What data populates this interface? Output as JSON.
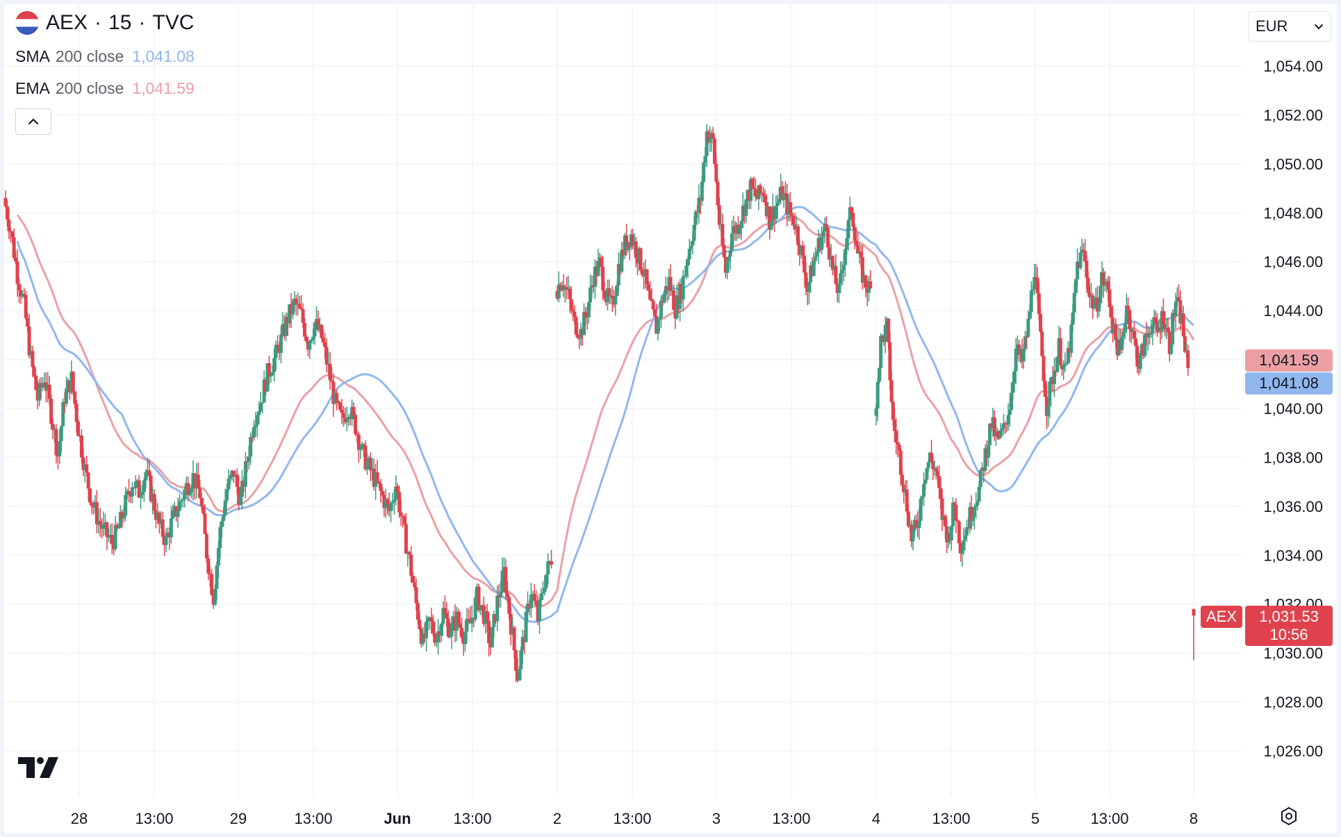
{
  "header": {
    "symbol": "AEX",
    "interval": "15",
    "source": "TVC",
    "separator": "·",
    "flag_icon": "netherlands-flag-icon"
  },
  "indicators": {
    "sma": {
      "name": "SMA",
      "params": "200 close",
      "value": "1,041.08",
      "color": "#90b7ee"
    },
    "ema": {
      "name": "EMA",
      "params": "200 close",
      "value": "1,041.59",
      "color": "#eca0a4"
    }
  },
  "currency": {
    "value": "EUR",
    "icon": "chevron-down-icon"
  },
  "price_labels": {
    "ema": "1,041.59",
    "sma": "1,041.08",
    "last_price": "1,031.53",
    "countdown": "10:56",
    "symbol_tag": "AEX"
  },
  "colors": {
    "up": "#3d9a80",
    "down": "#e0424d",
    "grid": "#f0f3fa"
  },
  "chart_data": {
    "type": "candlestick",
    "ylim": [
      1025,
      1055
    ],
    "y_ticks": [
      "1,026.00",
      "1,028.00",
      "1,030.00",
      "1,032.00",
      "1,034.00",
      "1,036.00",
      "1,038.00",
      "1,040.00",
      "1,042.00",
      "1,044.00",
      "1,046.00",
      "1,048.00",
      "1,050.00",
      "1,052.00",
      "1,054.00"
    ],
    "y_tick_values": [
      1026,
      1028,
      1030,
      1032,
      1034,
      1036,
      1038,
      1040,
      1042,
      1044,
      1046,
      1048,
      1050,
      1052,
      1054
    ],
    "x_ticks": [
      {
        "label": "28",
        "bold": false
      },
      {
        "label": "13:00",
        "bold": false
      },
      {
        "label": "29",
        "bold": false
      },
      {
        "label": "13:00",
        "bold": false
      },
      {
        "label": "Jun",
        "bold": true
      },
      {
        "label": "13:00",
        "bold": false
      },
      {
        "label": "2",
        "bold": false
      },
      {
        "label": "13:00",
        "bold": false
      },
      {
        "label": "3",
        "bold": false
      },
      {
        "label": "13:00",
        "bold": false
      },
      {
        "label": "4",
        "bold": false
      },
      {
        "label": "13:00",
        "bold": false
      },
      {
        "label": "5",
        "bold": false
      },
      {
        "label": "13:00",
        "bold": false
      },
      {
        "label": "8",
        "bold": false
      }
    ],
    "sessions": [
      {
        "close_path": [
          1048.6,
          1047.3,
          1045.5,
          1044.2,
          1042.0,
          1040.4,
          1041.3,
          1039.8,
          1038.1,
          1040.5,
          1041.2,
          1039.2,
          1037.5,
          1036.2,
          1035.4,
          1034.9,
          1034.5,
          1035.1,
          1036.1,
          1037.0,
          1036.6,
          1037.4,
          1036.3,
          1035.2,
          1034.6,
          1035.5,
          1036.1,
          1036.8,
          1037.2,
          1036.5,
          1034.1,
          1032.3,
          1035.0,
          1036.7,
          1037.4,
          1036.2,
          1037.9,
          1039.6,
          1040.3,
          1041.4,
          1042.0,
          1042.8,
          1043.7,
          1044.3,
          1043.8,
          1042.7,
          1043.5,
          1042.9,
          1041.6,
          1040.2,
          1039.5,
          1040.1,
          1039.3,
          1038.2,
          1037.6,
          1037.0,
          1036.4,
          1035.8,
          1036.9,
          1035.2,
          1033.8,
          1032.0,
          1030.4,
          1031.3,
          1030.6,
          1031.7,
          1030.9,
          1031.4,
          1030.8,
          1031.2,
          1032.3,
          1031.6,
          1030.3,
          1032.1,
          1033.3,
          1031.2,
          1029.1,
          1030.8,
          1032.6,
          1031.4,
          1033.0,
          1033.9
        ]
      },
      {
        "close_path": [
          1044.8,
          1045.3,
          1044.6,
          1043.5,
          1043.1,
          1044.0,
          1045.4,
          1045.9,
          1044.6,
          1044.1,
          1045.8,
          1046.7,
          1047.1,
          1046.3,
          1045.6,
          1044.2,
          1043.3,
          1044.5,
          1045.2,
          1044.1,
          1044.9,
          1046.3,
          1047.5,
          1048.6,
          1051.3,
          1050.9,
          1047.6,
          1045.6,
          1047.2,
          1047.5,
          1048.3,
          1049.0,
          1048.6,
          1048.9,
          1047.7,
          1048.3,
          1048.8,
          1048.1,
          1047.6,
          1046.4,
          1044.9,
          1046.0,
          1046.9,
          1047.4,
          1045.6,
          1044.7,
          1046.7,
          1048.2,
          1046.3,
          1045.2,
          1044.8
        ]
      },
      {
        "close_path": [
          1039.7,
          1042.7,
          1043.3,
          1039.4,
          1038.1,
          1036.5,
          1034.7,
          1035.3,
          1037.2,
          1038.0,
          1037.4,
          1035.6,
          1034.7,
          1036.1,
          1034.4,
          1035.2,
          1036.0,
          1036.7,
          1038.1,
          1039.4,
          1038.6,
          1039.1,
          1040.2,
          1042.4,
          1041.9,
          1043.4,
          1045.8,
          1042.8,
          1040.1,
          1041.3,
          1042.5,
          1041.4,
          1043.0,
          1045.9,
          1046.4,
          1044.6,
          1044.1,
          1045.3,
          1044.8,
          1043.0,
          1042.2,
          1044.3,
          1043.0,
          1041.8,
          1042.7,
          1043.5,
          1043.1,
          1043.9,
          1042.6,
          1044.4,
          1043.6,
          1041.4
        ]
      },
      {
        "close_path": [
          1031.53
        ]
      }
    ],
    "sma_series": {
      "name": "SMA 200 close",
      "last": 1041.08
    },
    "ema_series": {
      "name": "EMA 200 close",
      "last": 1041.59
    }
  }
}
